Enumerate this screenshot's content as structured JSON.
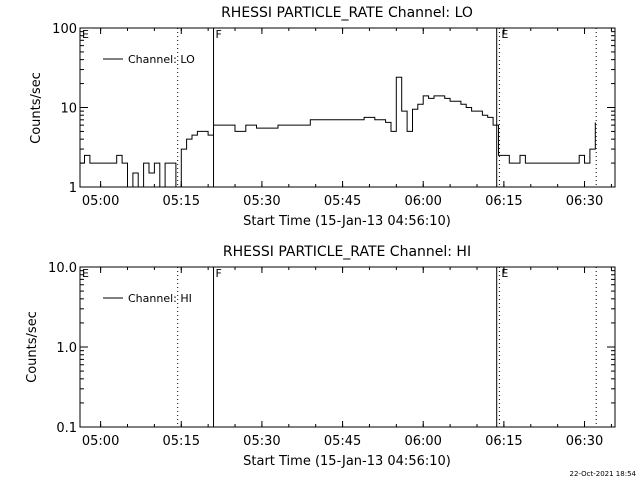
{
  "footer": {
    "date_stamp": "22-Oct-2021 18:54"
  },
  "chart_data": [
    {
      "type": "line",
      "title": "RHESSI PARTICLE_RATE Channel: LO",
      "xlabel": "Start Time (15-Jan-13 04:56:10)",
      "ylabel": "Counts/sec",
      "y_scale": "log",
      "ylim": [
        1,
        100
      ],
      "xlim": [
        "04:56:10",
        "06:35:40"
      ],
      "x_ticks": [
        "05:00",
        "05:15",
        "05:30",
        "05:45",
        "06:00",
        "06:15",
        "06:30"
      ],
      "y_ticks": [
        "1",
        "10",
        "100"
      ],
      "legend": {
        "placement": "top-left",
        "entries": [
          "Channel: LO"
        ]
      },
      "markers": [
        {
          "time": "05:14:20",
          "style": "dotted",
          "label": ""
        },
        {
          "time": "05:21:00",
          "style": "solid",
          "label": "F"
        },
        {
          "time": "06:13:40",
          "style": "solid",
          "label": ""
        },
        {
          "time": "06:14:10",
          "style": "dotted",
          "label": "E"
        },
        {
          "time": "06:32:10",
          "style": "dotted",
          "label": ""
        }
      ],
      "corner_label": "E",
      "series": [
        {
          "name": "Channel: LO",
          "x": [
            "04:56:10",
            "04:57:00",
            "04:58:00",
            "04:59:00",
            "05:00:00",
            "05:01:00",
            "05:02:00",
            "05:03:00",
            "05:04:00",
            "05:05:00",
            "05:06:00",
            "05:07:00",
            "05:08:00",
            "05:09:00",
            "05:10:00",
            "05:11:00",
            "05:12:00",
            "05:13:00",
            "05:14:00",
            "05:15:00",
            "05:16:00",
            "05:17:00",
            "05:18:00",
            "05:19:00",
            "05:20:00",
            "05:21:00",
            "05:23:00",
            "05:25:00",
            "05:27:00",
            "05:29:00",
            "05:31:00",
            "05:33:00",
            "05:35:00",
            "05:37:00",
            "05:39:00",
            "05:41:00",
            "05:43:00",
            "05:45:00",
            "05:47:00",
            "05:49:00",
            "05:51:00",
            "05:53:00",
            "05:54:00",
            "05:55:00",
            "05:56:00",
            "05:57:00",
            "05:58:00",
            "05:59:00",
            "06:00:00",
            "06:01:00",
            "06:02:00",
            "06:03:00",
            "06:04:00",
            "06:05:00",
            "06:06:00",
            "06:07:00",
            "06:08:00",
            "06:09:00",
            "06:10:00",
            "06:11:00",
            "06:12:00",
            "06:13:00",
            "06:13:30",
            "06:14:00",
            "06:15:00",
            "06:16:00",
            "06:17:00",
            "06:18:00",
            "06:19:00",
            "06:20:00",
            "06:22:00",
            "06:24:00",
            "06:25:00",
            "06:26:00",
            "06:27:00",
            "06:28:00",
            "06:29:00",
            "06:30:00",
            "06:31:00",
            "06:32:00"
          ],
          "values": [
            2,
            2.5,
            2,
            2,
            2,
            2,
            2,
            2.5,
            2,
            1,
            1.5,
            1,
            2,
            1.5,
            2,
            1,
            2,
            2,
            1,
            3,
            4,
            4.5,
            5,
            5,
            4.5,
            6,
            6,
            5,
            6,
            5.5,
            5.5,
            6,
            6,
            6,
            7,
            7,
            7,
            7,
            7,
            7.5,
            7,
            6.5,
            5,
            24,
            9,
            5,
            9.5,
            11,
            14,
            13,
            14,
            14,
            13,
            12,
            12,
            11,
            10,
            9,
            9,
            8,
            7.5,
            6,
            6,
            2.5,
            2.5,
            2,
            2,
            2.5,
            2,
            2,
            2,
            2,
            2,
            2,
            2,
            2,
            2.5,
            2,
            3,
            6.5
          ]
        }
      ]
    },
    {
      "type": "line",
      "title": "RHESSI PARTICLE_RATE Channel: HI",
      "xlabel": "Start Time (15-Jan-13 04:56:10)",
      "ylabel": "Counts/sec",
      "y_scale": "log",
      "ylim": [
        0.1,
        10
      ],
      "xlim": [
        "04:56:10",
        "06:35:40"
      ],
      "x_ticks": [
        "05:00",
        "05:15",
        "05:30",
        "05:45",
        "06:00",
        "06:15",
        "06:30"
      ],
      "y_ticks": [
        "0.1",
        "1.0",
        "10.0"
      ],
      "legend": {
        "placement": "top-left",
        "entries": [
          "Channel: HI"
        ]
      },
      "markers": [
        {
          "time": "05:14:20",
          "style": "dotted",
          "label": ""
        },
        {
          "time": "05:21:00",
          "style": "solid",
          "label": "F"
        },
        {
          "time": "06:13:40",
          "style": "solid",
          "label": ""
        },
        {
          "time": "06:14:10",
          "style": "dotted",
          "label": "E"
        },
        {
          "time": "06:32:10",
          "style": "dotted",
          "label": ""
        }
      ],
      "corner_label": "E",
      "series": [
        {
          "name": "Channel: HI",
          "x": [],
          "values": []
        }
      ]
    }
  ]
}
